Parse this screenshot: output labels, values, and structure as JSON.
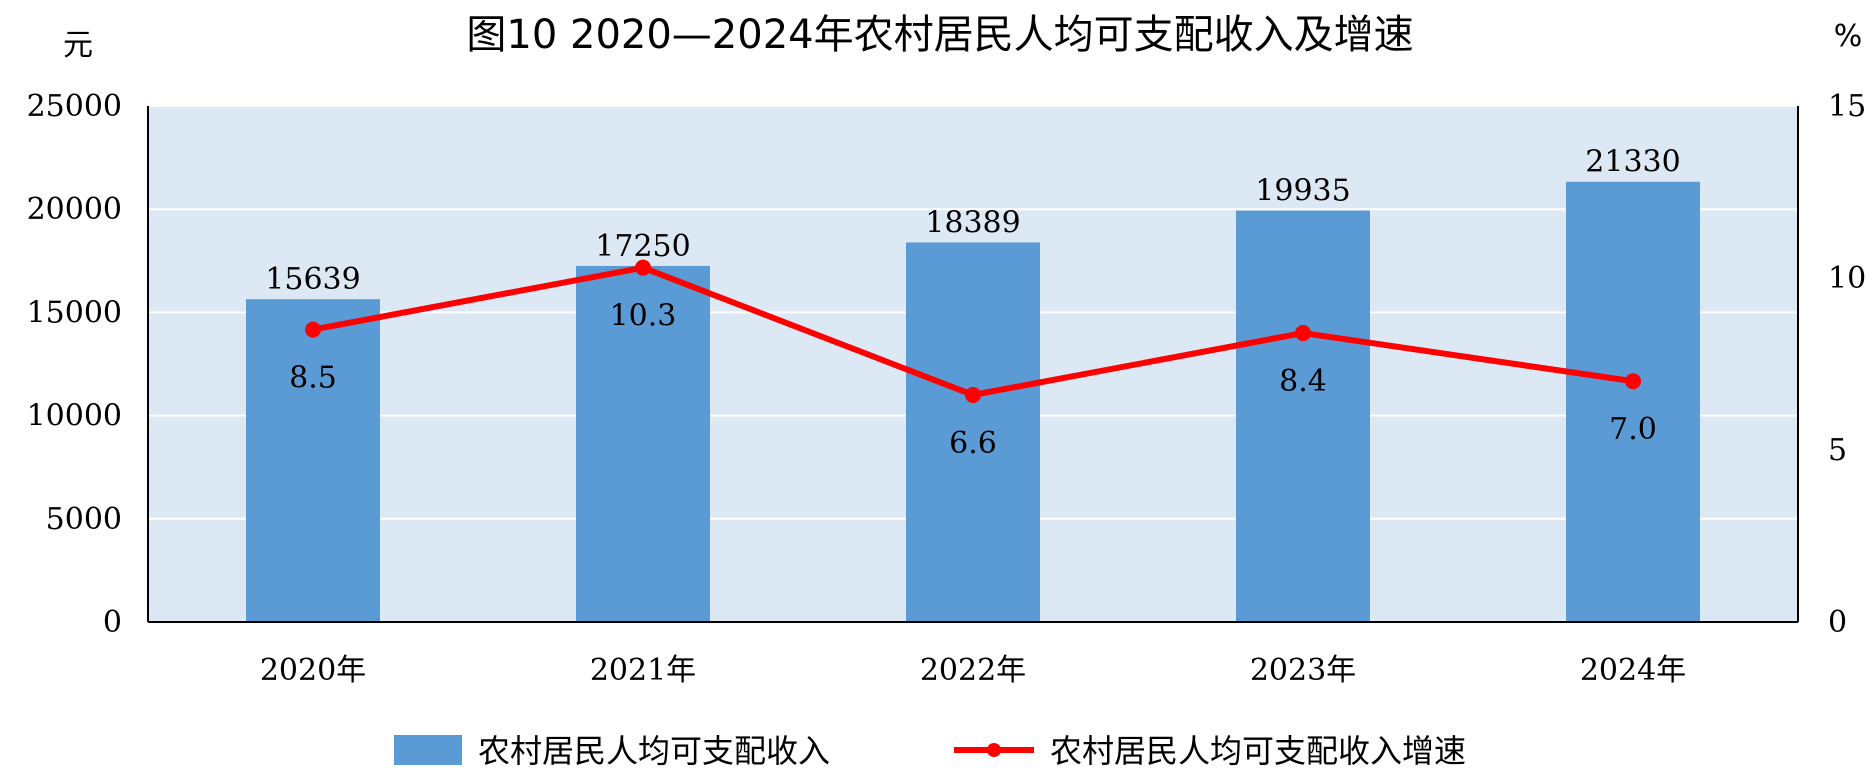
{
  "chart_data": {
    "type": "bar+line",
    "title": "图10  2020—2024年农村居民人均可支配收入及增速",
    "categories": [
      "2020年",
      "2021年",
      "2022年",
      "2023年",
      "2024年"
    ],
    "y_left": {
      "unit": "元",
      "range": [
        0,
        25000
      ],
      "ticks": [
        "0",
        "5000",
        "10000",
        "15000",
        "20000",
        "25000"
      ]
    },
    "y_right": {
      "unit": "%",
      "range": [
        0,
        15
      ],
      "ticks": [
        "0",
        "5",
        "10",
        "15"
      ]
    },
    "grid": true,
    "legend_position": "bottom",
    "series": [
      {
        "name": "农村居民人均可支配收入",
        "type": "bar",
        "axis": "left",
        "color": "#5b9bd5",
        "values": [
          15639,
          17250,
          18389,
          19935,
          21330
        ],
        "labels": [
          "15639",
          "17250",
          "18389",
          "19935",
          "21330"
        ]
      },
      {
        "name": "农村居民人均可支配收入增速",
        "type": "line",
        "axis": "right",
        "color": "#ff0000",
        "values": [
          8.5,
          10.3,
          6.6,
          8.4,
          7.0
        ],
        "labels": [
          "8.5",
          "10.3",
          "6.6",
          "8.4",
          "7.0"
        ]
      }
    ],
    "plot_background": "#dde8f5"
  }
}
